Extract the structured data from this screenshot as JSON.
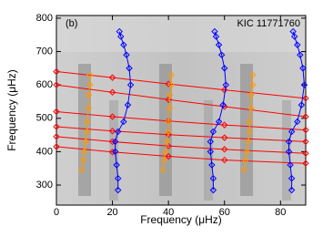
{
  "chart_data": {
    "type": "line",
    "panel_label": "(b)",
    "annotation": "KIC 11771760",
    "x_label": "Frequency (μHz)",
    "y_label": "Frequency (μHz)",
    "xlim": [
      0,
      89
    ],
    "ylim": [
      240,
      808
    ],
    "xticks": [
      0,
      20,
      40,
      60,
      80
    ],
    "yticks": [
      300,
      400,
      500,
      600,
      700,
      800
    ],
    "series": [
      {
        "color": "#ff0000",
        "marker": "diamond",
        "x": [
          0,
          20,
          40,
          60,
          89,
          null,
          0,
          20,
          40,
          60,
          89,
          null,
          0,
          20,
          40,
          60,
          89,
          null,
          0,
          20,
          40,
          60,
          89,
          null,
          0,
          20,
          40,
          60,
          89,
          null,
          0,
          20,
          40,
          60,
          89
        ],
        "values": [
          640,
          622,
          603,
          585,
          560,
          null,
          600,
          578,
          556,
          535,
          505,
          null,
          520,
          505,
          492,
          480,
          465,
          null,
          475,
          462,
          451,
          442,
          430,
          null,
          445,
          430,
          417,
          407,
          395,
          null,
          415,
          399,
          386,
          375,
          365
        ]
      },
      {
        "color": "#ff9900",
        "marker": "diamond",
        "x": [
          9,
          9.5,
          10,
          10.5,
          11,
          11,
          11.5,
          11.5,
          12,
          12,
          null,
          38,
          38.5,
          39,
          39.5,
          40,
          40,
          40.5,
          40.5,
          41,
          41,
          null,
          67,
          67.5,
          68,
          68.5,
          69,
          69,
          69.5,
          69.5,
          70,
          70
        ],
        "values": [
          345,
          375,
          400,
          430,
          460,
          490,
          530,
          570,
          600,
          630,
          null,
          345,
          375,
          400,
          430,
          460,
          490,
          530,
          570,
          600,
          630,
          null,
          345,
          375,
          400,
          430,
          460,
          490,
          530,
          570,
          600,
          630
        ]
      },
      {
        "color": "#0000ff",
        "marker": "diamond",
        "x": [
          22,
          22,
          21.5,
          21,
          21,
          22,
          24,
          25.5,
          26.5,
          26,
          25,
          24,
          23,
          22.5,
          null,
          56,
          56,
          55.5,
          55,
          55,
          56,
          58,
          59.5,
          60.5,
          60,
          59,
          58,
          57,
          56.5,
          null,
          84,
          84,
          83.5,
          83,
          83,
          84,
          86,
          87.5,
          88.5,
          88,
          87,
          86,
          85,
          84.5
        ],
        "values": [
          285,
          320,
          360,
          400,
          430,
          460,
          490,
          540,
          600,
          650,
          690,
          720,
          745,
          760,
          null,
          285,
          320,
          360,
          400,
          430,
          460,
          490,
          540,
          600,
          650,
          690,
          720,
          745,
          760,
          null,
          285,
          320,
          360,
          400,
          430,
          460,
          490,
          540,
          600,
          650,
          690,
          720,
          745,
          760
        ]
      }
    ]
  }
}
